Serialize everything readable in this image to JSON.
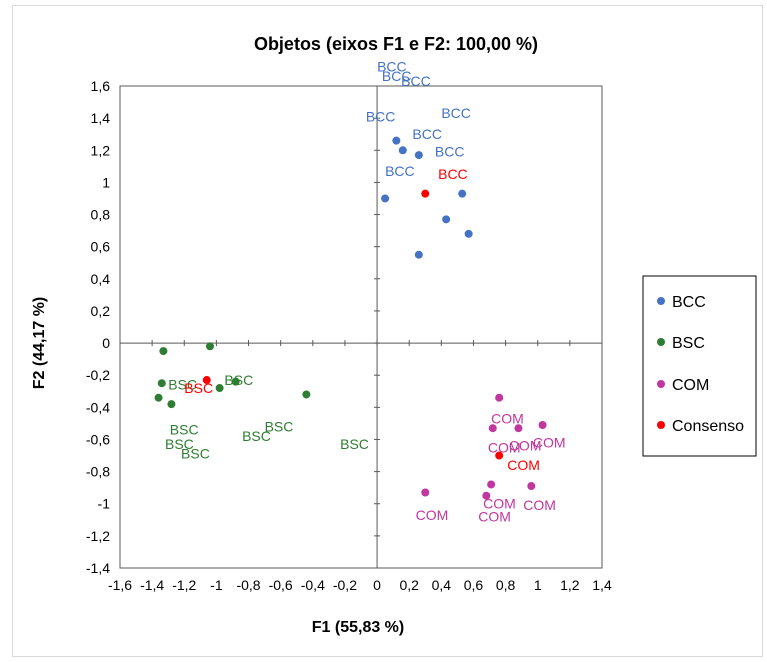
{
  "chart_data": {
    "type": "scatter",
    "title": "Objetos (eixos F1 e F2: 100,00 %)",
    "xlabel": "F1 (55,83 %)",
    "ylabel": "F2 (44,17 %)",
    "xlim": [
      -1.6,
      1.4
    ],
    "ylim": [
      -1.4,
      1.6
    ],
    "x_ticks": [
      "-1,6",
      "-1,4",
      "-1,2",
      "-1",
      "-0,8",
      "-0,6",
      "-0,4",
      "-0,2",
      "0",
      "0,2",
      "0,4",
      "0,6",
      "0,8",
      "1",
      "1,2",
      "1,4"
    ],
    "y_ticks": [
      "1,6",
      "1,4",
      "1,2",
      "1",
      "0,8",
      "0,6",
      "0,4",
      "0,2",
      "0",
      "-0,2",
      "-0,4",
      "-0,6",
      "-0,8",
      "-1",
      "-1,2",
      "-1,4"
    ],
    "grid": false,
    "legend_position": "right",
    "series": [
      {
        "name": "BCC",
        "color": "#4472c4",
        "points": [
          {
            "x": 0.12,
            "y": 1.26
          },
          {
            "x": 0.16,
            "y": 1.2
          },
          {
            "x": 0.26,
            "y": 1.17
          },
          {
            "x": 0.05,
            "y": 0.9
          },
          {
            "x": 0.53,
            "y": 0.93
          },
          {
            "x": 0.43,
            "y": 0.77
          },
          {
            "x": 0.57,
            "y": 0.68
          },
          {
            "x": 0.26,
            "y": 0.55
          }
        ],
        "labels": [
          {
            "text": "BCC",
            "x": 0.0,
            "y": 1.69
          },
          {
            "text": "BCC",
            "x": 0.03,
            "y": 1.63
          },
          {
            "text": "BCC",
            "x": 0.15,
            "y": 1.6
          },
          {
            "text": "BCC",
            "x": -0.07,
            "y": 1.38
          },
          {
            "text": "BCC",
            "x": 0.4,
            "y": 1.4
          },
          {
            "text": "BCC",
            "x": 0.22,
            "y": 1.27
          },
          {
            "text": "BCC",
            "x": 0.36,
            "y": 1.16
          },
          {
            "text": "BCC",
            "x": 0.05,
            "y": 1.04
          }
        ]
      },
      {
        "name": "BSC",
        "color": "#2e7d32",
        "points": [
          {
            "x": -1.33,
            "y": -0.05
          },
          {
            "x": -1.04,
            "y": -0.02
          },
          {
            "x": -1.34,
            "y": -0.25
          },
          {
            "x": -0.98,
            "y": -0.28
          },
          {
            "x": -0.88,
            "y": -0.24
          },
          {
            "x": -1.36,
            "y": -0.34
          },
          {
            "x": -1.28,
            "y": -0.38
          },
          {
            "x": -0.44,
            "y": -0.32
          }
        ],
        "labels": [
          {
            "text": "BSC",
            "x": -1.3,
            "y": -0.29
          },
          {
            "text": "BSC",
            "x": -0.95,
            "y": -0.26
          },
          {
            "text": "BSC",
            "x": -1.29,
            "y": -0.57
          },
          {
            "text": "BSC",
            "x": -0.84,
            "y": -0.61
          },
          {
            "text": "BSC",
            "x": -0.7,
            "y": -0.55
          },
          {
            "text": "BSC",
            "x": -1.32,
            "y": -0.66
          },
          {
            "text": "BSC",
            "x": -1.22,
            "y": -0.72
          },
          {
            "text": "BSC",
            "x": -0.23,
            "y": -0.66
          }
        ]
      },
      {
        "name": "COM",
        "color": "#c2369f",
        "points": [
          {
            "x": 0.76,
            "y": -0.34
          },
          {
            "x": 0.72,
            "y": -0.53
          },
          {
            "x": 0.88,
            "y": -0.53
          },
          {
            "x": 1.03,
            "y": -0.51
          },
          {
            "x": 0.71,
            "y": -0.88
          },
          {
            "x": 0.68,
            "y": -0.95
          },
          {
            "x": 0.96,
            "y": -0.89
          },
          {
            "x": 0.3,
            "y": -0.93
          }
        ],
        "labels": [
          {
            "text": "COM",
            "x": 0.71,
            "y": -0.5
          },
          {
            "text": "COM",
            "x": 0.69,
            "y": -0.68
          },
          {
            "text": "COM",
            "x": 0.82,
            "y": -0.67
          },
          {
            "text": "COM",
            "x": 0.97,
            "y": -0.65
          },
          {
            "text": "COM",
            "x": 0.66,
            "y": -1.03
          },
          {
            "text": "COM",
            "x": 0.63,
            "y": -1.11
          },
          {
            "text": "COM",
            "x": 0.91,
            "y": -1.04
          },
          {
            "text": "COM",
            "x": 0.24,
            "y": -1.1
          }
        ]
      },
      {
        "name": "Consenso",
        "color": "#ff0000",
        "points": [
          {
            "x": 0.3,
            "y": 0.93
          },
          {
            "x": -1.06,
            "y": -0.23
          },
          {
            "x": 0.76,
            "y": -0.7
          }
        ],
        "labels": [
          {
            "text": "BCC",
            "x": 0.38,
            "y": 1.02
          },
          {
            "text": "BSC",
            "x": -1.2,
            "y": -0.31
          },
          {
            "text": "COM",
            "x": 0.81,
            "y": -0.79
          }
        ]
      }
    ]
  }
}
